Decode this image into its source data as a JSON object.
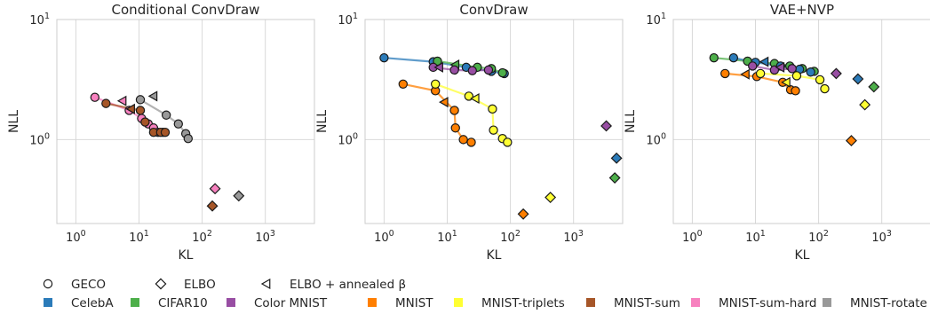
{
  "legend": {
    "markers": [
      {
        "name": "GECO",
        "shape": "circle"
      },
      {
        "name": "ELBO",
        "shape": "diamond"
      },
      {
        "name": "ELBO + annealed β",
        "shape": "triangle-left"
      }
    ],
    "datasets": [
      {
        "name": "CelebA",
        "color": "#2b7bb9"
      },
      {
        "name": "CIFAR10",
        "color": "#4daf4a"
      },
      {
        "name": "Color MNIST",
        "color": "#984ea3"
      },
      {
        "name": "MNIST",
        "color": "#ff7f00"
      },
      {
        "name": "MNIST-triplets",
        "color": "#ffff33"
      },
      {
        "name": "MNIST-sum",
        "color": "#a65628"
      },
      {
        "name": "MNIST-sum-hard",
        "color": "#f781bf"
      },
      {
        "name": "MNIST-rotate",
        "color": "#999999"
      }
    ]
  },
  "chart_data": [
    {
      "type": "scatter",
      "title": "Conditional ConvDraw",
      "xlabel": "KL",
      "ylabel": "NLL",
      "xscale": "log",
      "yscale": "log",
      "xlim": [
        0.5,
        6000
      ],
      "ylim": [
        0.2,
        10
      ],
      "xticks": [
        {
          "value": 1,
          "label": "10^0"
        },
        {
          "value": 10,
          "label": "10^1"
        },
        {
          "value": 100,
          "label": "10^2"
        },
        {
          "value": 1000,
          "label": "10^3"
        }
      ],
      "yticks": [
        {
          "value": 1,
          "label": "10^0"
        },
        {
          "value": 10,
          "label": "10^1"
        }
      ],
      "grid": true,
      "series": [
        {
          "dataset": "MNIST-sum-hard",
          "geco": [
            [
              2.0,
              2.25
            ],
            [
              7.0,
              1.75
            ],
            [
              11.0,
              1.5
            ],
            [
              14.0,
              1.35
            ],
            [
              17.0,
              1.25
            ],
            [
              20.0,
              1.15
            ],
            [
              24.0,
              1.15
            ]
          ],
          "elbo": [
            160,
            0.39
          ],
          "annealed": [
            5.5,
            2.1
          ]
        },
        {
          "dataset": "MNIST-sum",
          "geco": [
            [
              3.0,
              2.0
            ],
            [
              10.5,
              1.75
            ],
            [
              12.5,
              1.4
            ],
            [
              17.0,
              1.15
            ],
            [
              22.0,
              1.15
            ],
            [
              26.0,
              1.15
            ]
          ],
          "elbo": [
            145,
            0.28
          ],
          "annealed": [
            7.5,
            1.8
          ]
        },
        {
          "dataset": "MNIST-rotate",
          "geco": [
            [
              10.5,
              2.15
            ],
            [
              27.0,
              1.6
            ],
            [
              42.0,
              1.35
            ],
            [
              55.0,
              1.12
            ],
            [
              60.0,
              1.02
            ]
          ],
          "elbo": [
            380,
            0.34
          ],
          "annealed": [
            17.0,
            2.3
          ]
        }
      ]
    },
    {
      "type": "scatter",
      "title": "ConvDraw",
      "xlabel": "KL",
      "ylabel": "NLL",
      "xscale": "log",
      "yscale": "log",
      "xlim": [
        0.5,
        6000
      ],
      "ylim": [
        0.2,
        10
      ],
      "xticks": [
        {
          "value": 1,
          "label": "10^0"
        },
        {
          "value": 10,
          "label": "10^1"
        },
        {
          "value": 100,
          "label": "10^2"
        },
        {
          "value": 1000,
          "label": "10^3"
        }
      ],
      "yticks": [
        {
          "value": 1,
          "label": "10^0"
        },
        {
          "value": 10,
          "label": "10^1"
        }
      ],
      "grid": true,
      "series": [
        {
          "dataset": "CelebA",
          "geco": [
            [
              1.0,
              4.8
            ],
            [
              6.0,
              4.45
            ],
            [
              20.0,
              4.0
            ],
            [
              50.0,
              3.7
            ],
            [
              80.0,
              3.55
            ]
          ],
          "elbo": [
            4800,
            0.7
          ],
          "annealed": null
        },
        {
          "dataset": "CIFAR10",
          "geco": [
            [
              7.0,
              4.5
            ],
            [
              30.0,
              4.0
            ],
            [
              50.0,
              3.9
            ],
            [
              75.0,
              3.6
            ]
          ],
          "elbo": [
            4500,
            0.48
          ],
          "annealed": [
            13.5,
            4.2
          ]
        },
        {
          "dataset": "Color MNIST",
          "geco": [
            [
              6.0,
              4.0
            ],
            [
              13.0,
              3.8
            ],
            [
              25.0,
              3.75
            ],
            [
              45.0,
              3.8
            ]
          ],
          "elbo": [
            3300,
            1.3
          ],
          "annealed": [
            7.5,
            4.0
          ]
        },
        {
          "dataset": "MNIST",
          "geco": [
            [
              2.0,
              2.9
            ],
            [
              6.5,
              2.55
            ],
            [
              13.0,
              1.75
            ],
            [
              13.5,
              1.25
            ],
            [
              18.0,
              1.0
            ],
            [
              24.0,
              0.95
            ]
          ],
          "elbo": [
            160,
            0.24
          ],
          "annealed": [
            9.0,
            2.05
          ]
        },
        {
          "dataset": "MNIST-triplets",
          "geco": [
            [
              6.5,
              2.9
            ],
            [
              22.0,
              2.3
            ],
            [
              52.0,
              1.8
            ],
            [
              54.0,
              1.2
            ],
            [
              75.0,
              1.02
            ],
            [
              90.0,
              0.95
            ]
          ],
          "elbo": [
            430,
            0.33
          ],
          "annealed": [
            28.0,
            2.2
          ]
        }
      ]
    },
    {
      "type": "scatter",
      "title": "VAE+NVP",
      "xlabel": "KL",
      "ylabel": "NLL",
      "xscale": "log",
      "yscale": "log",
      "xlim": [
        0.5,
        6000
      ],
      "ylim": [
        0.2,
        10
      ],
      "xticks": [
        {
          "value": 1,
          "label": "10^0"
        },
        {
          "value": 10,
          "label": "10^1"
        },
        {
          "value": 100,
          "label": "10^2"
        },
        {
          "value": 1000,
          "label": "10^3"
        }
      ],
      "yticks": [
        {
          "value": 1,
          "label": "10^0"
        },
        {
          "value": 10,
          "label": "10^1"
        }
      ],
      "grid": true,
      "series": [
        {
          "dataset": "CIFAR10",
          "geco": [
            [
              2.2,
              4.8
            ],
            [
              7.5,
              4.5
            ],
            [
              20.0,
              4.3
            ],
            [
              35.0,
              4.1
            ],
            [
              55.0,
              3.9
            ],
            [
              85.0,
              3.7
            ]
          ],
          "elbo": [
            750,
            2.75
          ],
          "annealed": null
        },
        {
          "dataset": "CelebA",
          "geco": [
            [
              4.5,
              4.8
            ],
            [
              10.0,
              4.4
            ],
            [
              25.0,
              4.1
            ],
            [
              50.0,
              3.85
            ],
            [
              75.0,
              3.65
            ]
          ],
          "elbo": [
            420,
            3.2
          ],
          "annealed": [
            14.0,
            4.45
          ]
        },
        {
          "dataset": "Color MNIST",
          "geco": [
            [
              9.0,
              4.1
            ],
            [
              20.0,
              3.8
            ],
            [
              38.0,
              3.9
            ]
          ],
          "elbo": [
            190,
            3.55
          ],
          "annealed": [
            25.0,
            4.0
          ]
        },
        {
          "dataset": "MNIST",
          "geco": [
            [
              3.3,
              3.55
            ],
            [
              10.5,
              3.35
            ],
            [
              27.0,
              3.0
            ],
            [
              36.0,
              2.6
            ],
            [
              43.0,
              2.55
            ]
          ],
          "elbo": [
            330,
            0.98
          ],
          "annealed": [
            7.0,
            3.5
          ]
        },
        {
          "dataset": "MNIST-triplets",
          "geco": [
            [
              12.0,
              3.55
            ],
            [
              45.0,
              3.4
            ],
            [
              105.0,
              3.15
            ],
            [
              125.0,
              2.65
            ]
          ],
          "elbo": [
            540,
            1.95
          ],
          "annealed": [
            31.0,
            3.0
          ]
        }
      ]
    }
  ]
}
